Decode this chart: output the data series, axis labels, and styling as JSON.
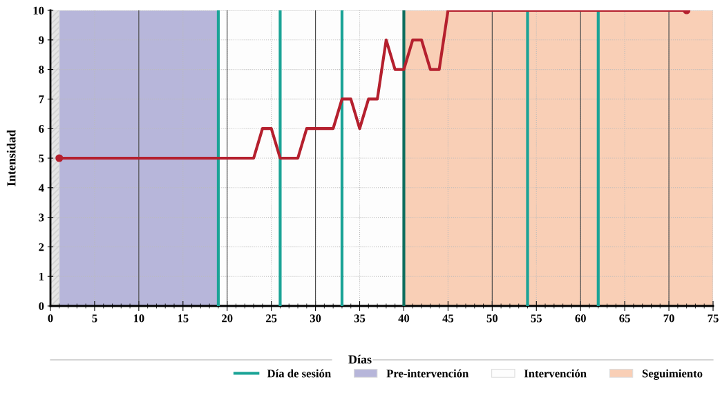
{
  "chart_data": {
    "type": "line",
    "xlabel": "Días",
    "ylabel": "Intensidad",
    "x": [
      1,
      23,
      24,
      25,
      26,
      28,
      29,
      32,
      33,
      34,
      35,
      36,
      37,
      38,
      39,
      40,
      41,
      42,
      43,
      44,
      45,
      72
    ],
    "series": [
      {
        "color": "#b5202e",
        "values": [
          5,
          5,
          6,
          6,
          5,
          5,
          6,
          6,
          7,
          7,
          6,
          7,
          7,
          9,
          8,
          8,
          9,
          9,
          8,
          8,
          10,
          10
        ]
      }
    ],
    "xlim": [
      0,
      75
    ],
    "xticks": [
      0,
      5,
      10,
      15,
      20,
      25,
      30,
      35,
      40,
      45,
      50,
      55,
      60,
      65,
      70,
      75
    ],
    "ylim": [
      0,
      10
    ],
    "yticks": [
      0,
      1,
      2,
      3,
      4,
      5,
      6,
      7,
      8,
      9,
      10
    ],
    "grid": true,
    "legend": "bottom right",
    "bands": [
      {
        "axis": "x",
        "from": 0,
        "to": 1,
        "color": "#e6e6e6"
      },
      {
        "axis": "x",
        "from": 1,
        "to": 19,
        "label": "Pre-intervención",
        "color": "#b7b6da"
      },
      {
        "axis": "x",
        "from": 19,
        "to": 40,
        "label": "Intervención",
        "color": "#fdfdfd"
      },
      {
        "axis": "x",
        "from": 40,
        "to": 75,
        "label": "Seguimiento",
        "color": "#f9cfb6"
      }
    ],
    "ref_lines": [
      {
        "axis": "x",
        "value": 19,
        "label": "Día de sesión",
        "color": "#1aa396"
      },
      {
        "axis": "x",
        "value": 26,
        "color": "#1aa396"
      },
      {
        "axis": "x",
        "value": 33,
        "color": "#1aa396"
      },
      {
        "axis": "x",
        "value": 40,
        "color": "#0e6e5e"
      },
      {
        "axis": "x",
        "value": 54,
        "color": "#1aa396"
      },
      {
        "axis": "x",
        "value": 62,
        "color": "#1aa396"
      }
    ]
  }
}
